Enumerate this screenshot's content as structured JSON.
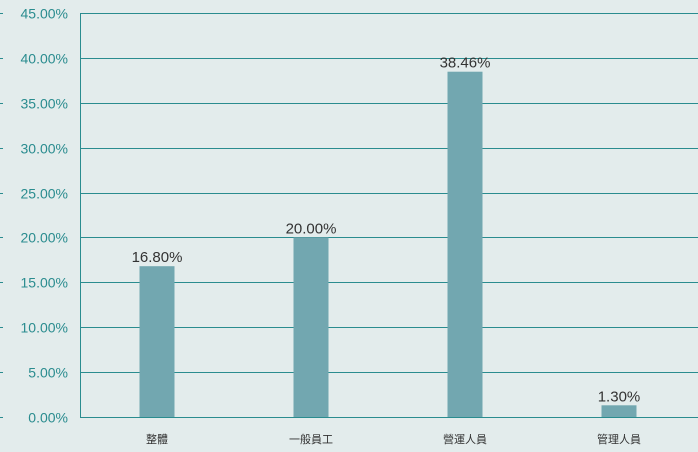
{
  "chart_data": {
    "type": "bar",
    "title": "",
    "xlabel": "",
    "ylabel": "",
    "categories": [
      "整體",
      "一般員工",
      "營運人員",
      "管理人員"
    ],
    "values": [
      16.8,
      20.0,
      38.46,
      1.3
    ],
    "value_labels": [
      "16.80%",
      "20.00%",
      "38.46%",
      "1.30%"
    ],
    "ylim": [
      0,
      45
    ],
    "yticks": [
      0,
      5,
      10,
      15,
      20,
      25,
      30,
      35,
      40,
      45
    ],
    "ytick_labels": [
      "0.00%",
      "5.00%",
      "10.00%",
      "15.00%",
      "20.00%",
      "25.00%",
      "30.00%",
      "35.00%",
      "40.00%",
      "45.00%"
    ],
    "grid": true,
    "legend": "none",
    "colors": {
      "bar": "#72a7b0",
      "grid": "#2a8c8f",
      "axis_text": "#2a8c8f",
      "background": "#e3ecec"
    }
  }
}
